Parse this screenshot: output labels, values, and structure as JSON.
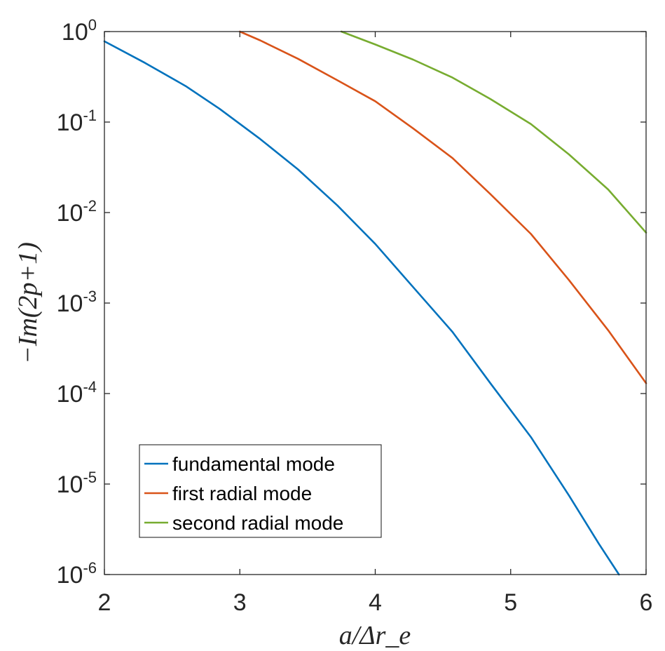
{
  "chart_data": {
    "type": "line",
    "xlabel": "a/Δr_e",
    "ylabel": "−Im(2p+1)",
    "xlim": [
      2,
      6
    ],
    "ylim": [
      1e-06,
      1
    ],
    "yscale": "log",
    "grid": false,
    "legend_position": "bottom-left",
    "x_ticks": [
      "2",
      "3",
      "4",
      "5",
      "6"
    ],
    "y_ticks": [
      {
        "value": 1e-06,
        "base": "10",
        "exp": "-6"
      },
      {
        "value": 1e-05,
        "base": "10",
        "exp": "-5"
      },
      {
        "value": 0.0001,
        "base": "10",
        "exp": "-4"
      },
      {
        "value": 0.001,
        "base": "10",
        "exp": "-3"
      },
      {
        "value": 0.01,
        "base": "10",
        "exp": "-2"
      },
      {
        "value": 0.1,
        "base": "10",
        "exp": "-1"
      },
      {
        "value": 1,
        "base": "10",
        "exp": "0"
      }
    ],
    "series": [
      {
        "name": "fundamental mode",
        "color": "#0072BD",
        "x": [
          2.0,
          2.3,
          2.6,
          2.85,
          3.15,
          3.43,
          3.72,
          4.0,
          4.28,
          4.57,
          4.85,
          5.15,
          5.43,
          5.65,
          5.8
        ],
        "y": [
          0.78,
          0.45,
          0.25,
          0.14,
          0.065,
          0.03,
          0.012,
          0.0045,
          0.0015,
          0.00048,
          0.00013,
          3.3e-05,
          7.5e-06,
          2.2e-06,
          1e-06
        ]
      },
      {
        "name": "first radial mode",
        "color": "#D95319",
        "x": [
          3.0,
          3.15,
          3.43,
          3.72,
          4.0,
          4.28,
          4.57,
          4.85,
          5.15,
          5.43,
          5.72,
          6.0
        ],
        "y": [
          1.0,
          0.8,
          0.5,
          0.29,
          0.17,
          0.085,
          0.04,
          0.016,
          0.0058,
          0.0018,
          0.0005,
          0.00013
        ]
      },
      {
        "name": "second radial mode",
        "color": "#77AC30",
        "x": [
          3.75,
          4.0,
          4.28,
          4.57,
          4.85,
          5.15,
          5.43,
          5.72,
          6.0
        ],
        "y": [
          1.0,
          0.72,
          0.49,
          0.31,
          0.18,
          0.095,
          0.044,
          0.018,
          0.006
        ]
      }
    ]
  }
}
